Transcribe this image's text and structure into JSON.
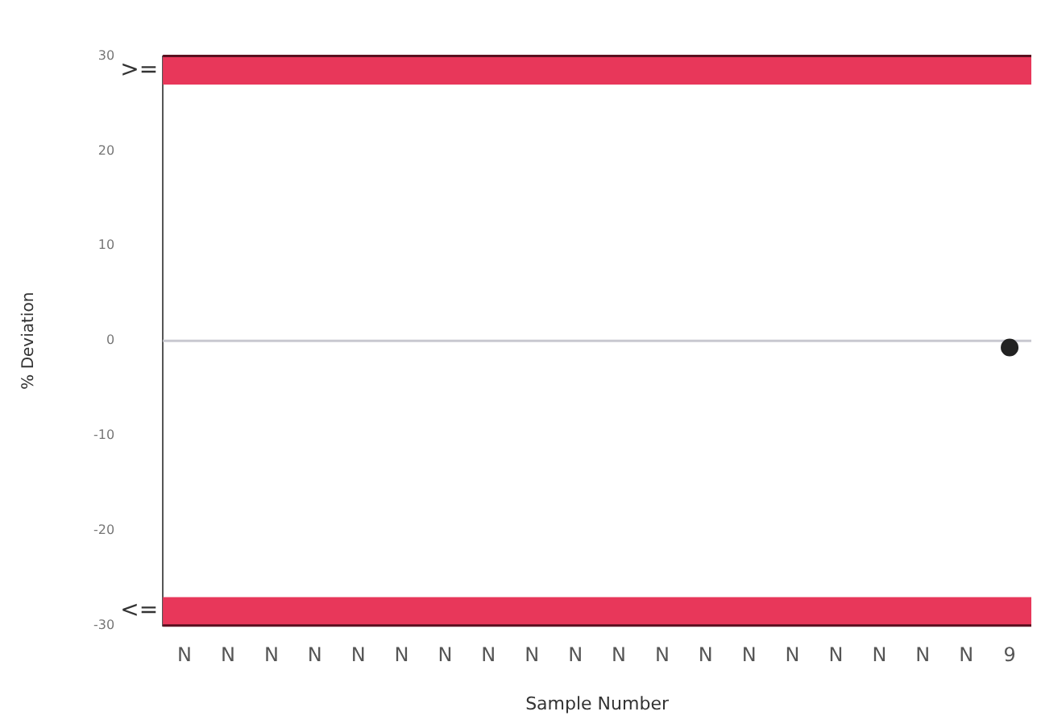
{
  "chart_data": {
    "type": "scatter",
    "xlabel": "Sample Number",
    "ylabel": "% Deviation",
    "categories": [
      "N",
      "N",
      "N",
      "N",
      "N",
      "N",
      "N",
      "N",
      "N",
      "N",
      "N",
      "N",
      "N",
      "N",
      "N",
      "N",
      "N",
      "N",
      "N",
      "9"
    ],
    "series": [
      {
        "color": "#222222",
        "values": [
          null,
          null,
          null,
          null,
          null,
          null,
          null,
          null,
          null,
          null,
          null,
          null,
          null,
          null,
          null,
          null,
          null,
          null,
          null,
          -0.7
        ]
      }
    ],
    "ylim": [
      -30,
      30
    ],
    "yticks": [
      -30,
      -20,
      -10,
      0,
      10,
      20,
      30
    ],
    "grid": false,
    "legend": false,
    "marker": "circle",
    "ref_lines": [
      {
        "axis": "y",
        "value": 0,
        "color": "#c8c8d0"
      }
    ],
    "bands": [
      {
        "axis": "y",
        "from": 27,
        "to": 30,
        "label": ">=",
        "color": "#e8375a"
      },
      {
        "axis": "y",
        "from": -30,
        "to": -27,
        "label": "<=",
        "color": "#e8375a"
      }
    ]
  }
}
